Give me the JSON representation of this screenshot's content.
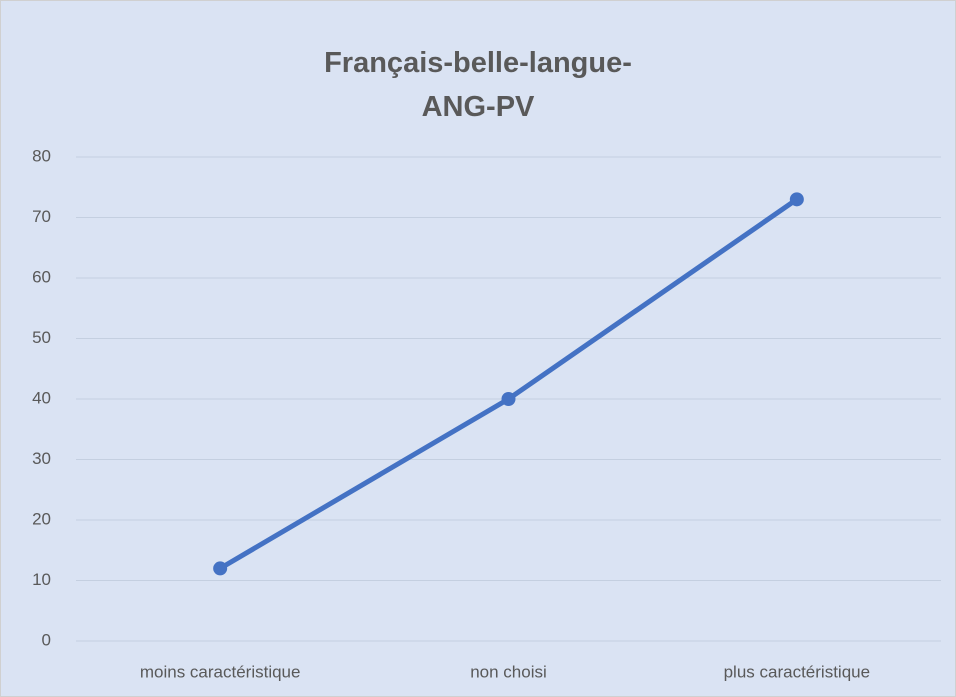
{
  "chart_data": {
    "type": "line",
    "title": "Français-belle-langue-ANG-PV",
    "categories": [
      "moins caractéristique",
      "non choisi",
      "plus caractéristique"
    ],
    "series": [
      {
        "name": null,
        "color": "#4472c4",
        "values": [
          12,
          40,
          73
        ]
      }
    ],
    "ylim": [
      0,
      80
    ],
    "yticks": [
      0,
      10,
      20,
      30,
      40,
      50,
      60,
      70,
      80
    ],
    "grid": true
  }
}
